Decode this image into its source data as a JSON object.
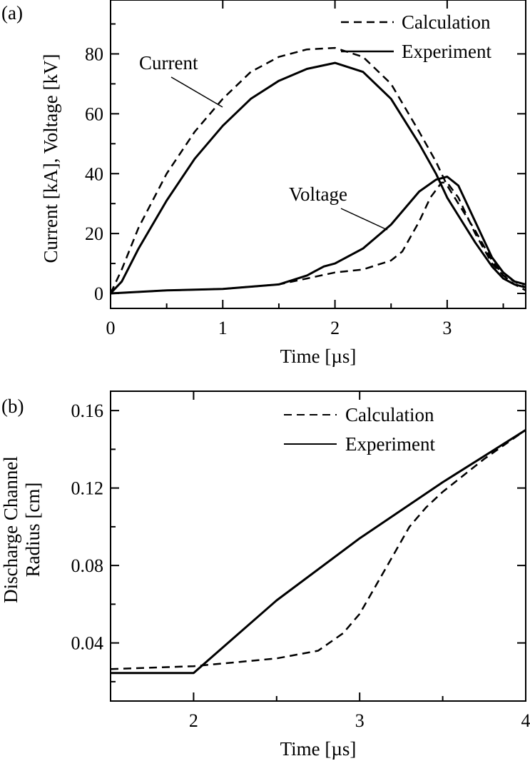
{
  "chart_data": [
    {
      "panel": "(a)",
      "type": "line",
      "xlabel": "Time [µs]",
      "ylabel": "Current [kA], Voltage [kV]",
      "xlim": [
        0,
        3.7
      ],
      "ylim": [
        -5,
        98
      ],
      "xticks": [
        0,
        1,
        2,
        3
      ],
      "yticks": [
        0,
        20,
        40,
        60,
        80
      ],
      "grid": false,
      "legend_position": "top-right",
      "legend": [
        {
          "label": "Calculation",
          "style": "dashed"
        },
        {
          "label": "Experiment",
          "style": "solid"
        }
      ],
      "annotations": [
        {
          "text": "Current",
          "target_series": "current_experiment",
          "target_x": 1.0,
          "target_y": 62
        },
        {
          "text": "Voltage",
          "target_series": "voltage_experiment",
          "target_x": 2.5,
          "target_y": 22
        }
      ],
      "series": [
        {
          "id": "current_calculation",
          "style": "dashed",
          "x": [
            0,
            0.1,
            0.25,
            0.5,
            0.75,
            1.0,
            1.25,
            1.5,
            1.75,
            2.0,
            2.25,
            2.5,
            2.75,
            2.9,
            3.0,
            3.1,
            3.25,
            3.4,
            3.5,
            3.6,
            3.7
          ],
          "y": [
            0,
            8,
            22,
            40,
            54,
            65,
            74,
            79,
            81.5,
            82,
            79,
            70,
            54,
            44,
            36,
            30,
            21,
            11,
            6,
            3,
            1
          ]
        },
        {
          "id": "current_experiment",
          "style": "solid",
          "x": [
            0,
            0.1,
            0.25,
            0.5,
            0.75,
            1.0,
            1.25,
            1.5,
            1.75,
            2.0,
            2.25,
            2.5,
            2.75,
            2.9,
            3.0,
            3.1,
            3.25,
            3.4,
            3.5,
            3.6,
            3.7
          ],
          "y": [
            0,
            4,
            15,
            31,
            45,
            56,
            65,
            71,
            75,
            77,
            74,
            65,
            50,
            40,
            32,
            26,
            17,
            9,
            5,
            3,
            2
          ]
        },
        {
          "id": "voltage_calculation",
          "style": "dashed",
          "x": [
            0,
            0.5,
            1.0,
            1.5,
            1.75,
            2.0,
            2.25,
            2.5,
            2.6,
            2.75,
            2.85,
            2.95,
            3.0,
            3.1,
            3.25,
            3.4,
            3.5,
            3.6,
            3.7
          ],
          "y": [
            0,
            1,
            1.5,
            3,
            5,
            7,
            8,
            11,
            14,
            24,
            32,
            37,
            37,
            32,
            20,
            10,
            6,
            4,
            2
          ]
        },
        {
          "id": "voltage_experiment",
          "style": "solid",
          "x": [
            0,
            0.5,
            1.0,
            1.5,
            1.75,
            1.9,
            2.0,
            2.25,
            2.5,
            2.75,
            2.9,
            3.0,
            3.1,
            3.25,
            3.4,
            3.5,
            3.6,
            3.7
          ],
          "y": [
            0,
            1,
            1.5,
            3,
            6,
            9,
            10,
            15,
            23,
            34,
            38,
            39,
            36,
            24,
            12,
            7,
            4,
            3
          ]
        }
      ]
    },
    {
      "panel": "(b)",
      "type": "line",
      "xlabel": "Time [µs]",
      "ylabel": "Discharge Channel Radius [cm]",
      "ylabel_lines": [
        "Discharge Channel",
        "Radius [cm]"
      ],
      "xlim": [
        1.5,
        4.0
      ],
      "ylim": [
        0.01,
        0.17
      ],
      "xticks": [
        2,
        3,
        4
      ],
      "yticks": [
        0.04,
        0.08,
        0.12,
        0.16
      ],
      "ytick_labels": [
        "0.04",
        "0.08",
        "0.12",
        "0.16"
      ],
      "grid": false,
      "legend_position": "top-right",
      "legend": [
        {
          "label": "Calculation",
          "style": "dashed"
        },
        {
          "label": "Experiment",
          "style": "solid"
        }
      ],
      "series": [
        {
          "id": "radius_calculation",
          "style": "dashed",
          "x": [
            1.5,
            2.0,
            2.25,
            2.5,
            2.75,
            2.9,
            3.0,
            3.1,
            3.2,
            3.3,
            3.4,
            3.5,
            3.75,
            4.0
          ],
          "y": [
            0.0265,
            0.028,
            0.03,
            0.032,
            0.036,
            0.045,
            0.055,
            0.07,
            0.085,
            0.1,
            0.11,
            0.118,
            0.135,
            0.15
          ]
        },
        {
          "id": "radius_experiment",
          "style": "solid",
          "x": [
            1.5,
            2.0,
            2.5,
            3.0,
            3.5,
            4.0
          ],
          "y": [
            0.0245,
            0.0245,
            0.062,
            0.094,
            0.123,
            0.15
          ]
        }
      ]
    }
  ]
}
